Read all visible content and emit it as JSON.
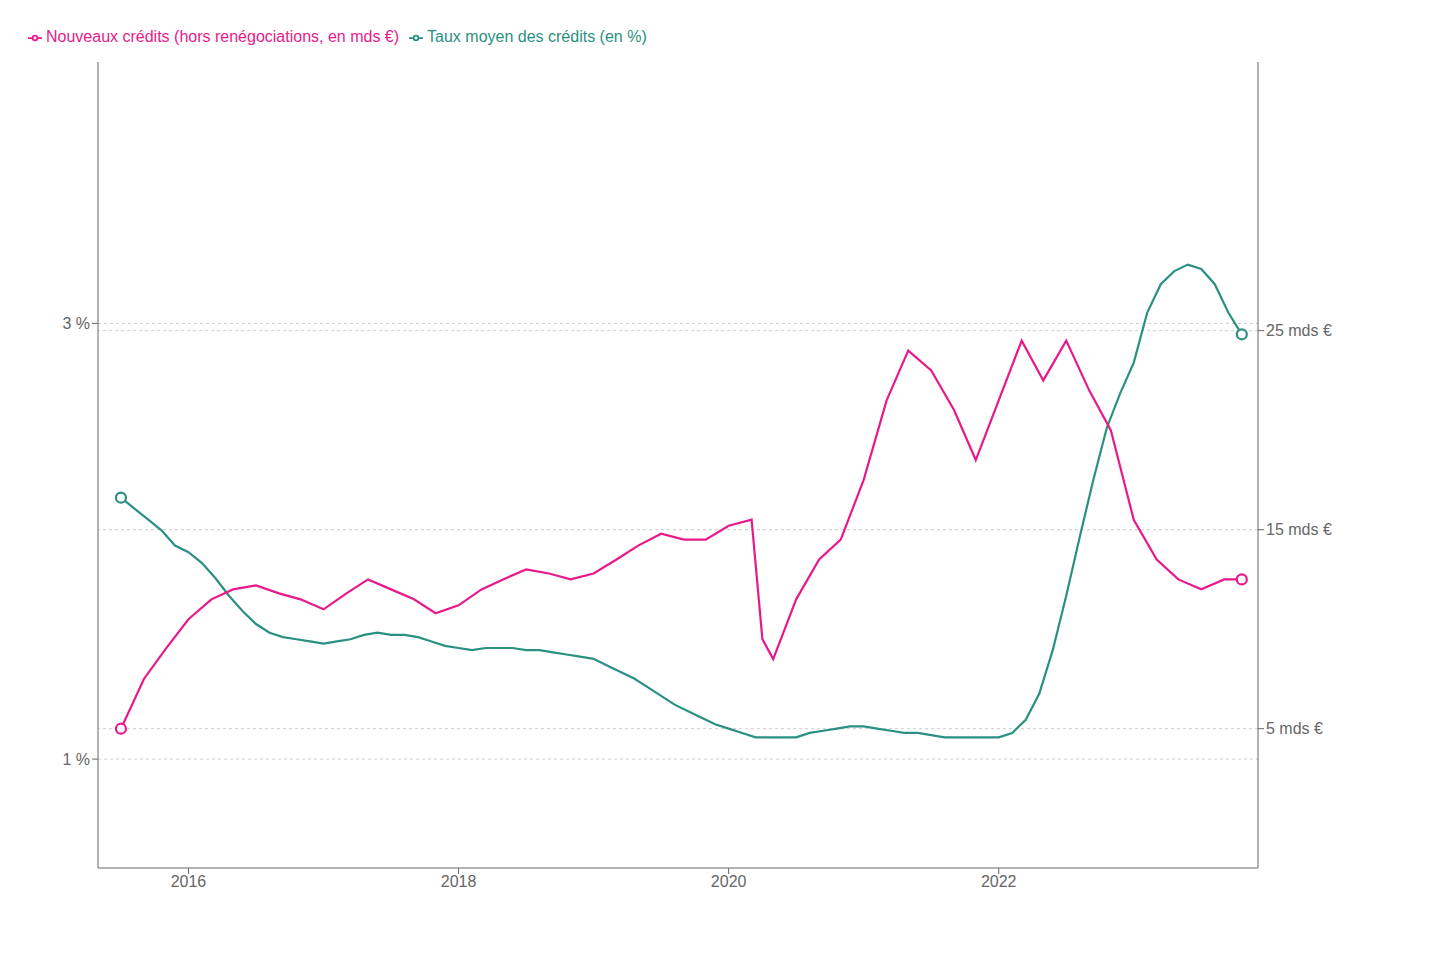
{
  "chart_data": {
    "type": "line",
    "legend": "upper left",
    "grid": true,
    "xlim": [
      2015.33,
      2023.92
    ],
    "xticks": [
      2016,
      2018,
      2020,
      2022
    ],
    "ylim": [
      0.5,
      4.2
    ],
    "yticks": [
      {
        "value": 1.0,
        "label": "1 %"
      },
      {
        "value": 3.0,
        "label": "3 %"
      }
    ],
    "y2lim": [
      -2.0,
      38.5
    ],
    "y2ticks": [
      {
        "value": 5.0,
        "label": "5 mds €"
      },
      {
        "value": 15.0,
        "label": "15 mds €"
      },
      {
        "value": 25.0,
        "label": "25 mds €"
      }
    ],
    "series": [
      {
        "name": "Taux moyen des crédits (en %)",
        "color": "#2a9080",
        "axis": "y",
        "x": [
          2015.5,
          2015.6,
          2015.7,
          2015.8,
          2015.9,
          2016.0,
          2016.1,
          2016.2,
          2016.3,
          2016.4,
          2016.5,
          2016.6,
          2016.7,
          2016.8,
          2016.9,
          2017.0,
          2017.1,
          2017.2,
          2017.3,
          2017.4,
          2017.5,
          2017.6,
          2017.7,
          2017.8,
          2017.9,
          2018.0,
          2018.1,
          2018.2,
          2018.3,
          2018.4,
          2018.5,
          2018.6,
          2018.7,
          2018.8,
          2018.9,
          2019.0,
          2019.1,
          2019.2,
          2019.3,
          2019.4,
          2019.5,
          2019.6,
          2019.7,
          2019.8,
          2019.9,
          2020.0,
          2020.1,
          2020.2,
          2020.3,
          2020.4,
          2020.5,
          2020.6,
          2020.7,
          2020.8,
          2020.9,
          2021.0,
          2021.1,
          2021.2,
          2021.3,
          2021.4,
          2021.5,
          2021.6,
          2021.7,
          2021.8,
          2021.9,
          2022.0,
          2022.1,
          2022.2,
          2022.3,
          2022.4,
          2022.5,
          2022.6,
          2022.7,
          2022.8,
          2022.9,
          2023.0,
          2023.1,
          2023.2,
          2023.3,
          2023.4,
          2023.5,
          2023.6,
          2023.7,
          2023.8
        ],
        "values": [
          2.2,
          2.15,
          2.1,
          2.05,
          1.98,
          1.95,
          1.9,
          1.83,
          1.75,
          1.68,
          1.62,
          1.58,
          1.56,
          1.55,
          1.54,
          1.53,
          1.54,
          1.55,
          1.57,
          1.58,
          1.57,
          1.57,
          1.56,
          1.54,
          1.52,
          1.51,
          1.5,
          1.51,
          1.51,
          1.51,
          1.5,
          1.5,
          1.49,
          1.48,
          1.47,
          1.46,
          1.43,
          1.4,
          1.37,
          1.33,
          1.29,
          1.25,
          1.22,
          1.19,
          1.16,
          1.14,
          1.12,
          1.1,
          1.1,
          1.1,
          1.1,
          1.12,
          1.13,
          1.14,
          1.15,
          1.15,
          1.14,
          1.13,
          1.12,
          1.12,
          1.11,
          1.1,
          1.1,
          1.1,
          1.1,
          1.1,
          1.12,
          1.18,
          1.3,
          1.5,
          1.75,
          2.02,
          2.28,
          2.52,
          2.68,
          2.82,
          3.05,
          3.18,
          3.24,
          3.27,
          3.25,
          3.18,
          3.05,
          2.95
        ]
      },
      {
        "name": "Nouveaux crédits (hors renégociations, en mds €)",
        "color": "#e8198b",
        "axis": "y2",
        "x": [
          2015.5,
          2015.67,
          2015.83,
          2016.0,
          2016.17,
          2016.33,
          2016.5,
          2016.67,
          2016.83,
          2017.0,
          2017.17,
          2017.33,
          2017.5,
          2017.67,
          2017.83,
          2018.0,
          2018.17,
          2018.33,
          2018.5,
          2018.67,
          2018.83,
          2019.0,
          2019.17,
          2019.33,
          2019.5,
          2019.67,
          2019.83,
          2020.0,
          2020.17,
          2020.25,
          2020.33,
          2020.5,
          2020.67,
          2020.83,
          2021.0,
          2021.17,
          2021.33,
          2021.5,
          2021.67,
          2021.83,
          2022.0,
          2022.17,
          2022.33,
          2022.5,
          2022.67,
          2022.83,
          2023.0,
          2023.17,
          2023.33,
          2023.5,
          2023.67,
          2023.8
        ],
        "values": [
          5.0,
          7.5,
          9.0,
          10.5,
          11.5,
          12.0,
          12.2,
          11.8,
          11.5,
          11.0,
          11.8,
          12.5,
          12.0,
          11.5,
          10.8,
          11.2,
          12.0,
          12.5,
          13.0,
          12.8,
          12.5,
          12.8,
          13.5,
          14.2,
          14.8,
          14.5,
          14.5,
          15.2,
          15.5,
          9.5,
          8.5,
          11.5,
          13.5,
          14.5,
          17.5,
          21.5,
          24.0,
          23.0,
          21.0,
          18.5,
          21.5,
          24.5,
          22.5,
          24.5,
          22.0,
          20.0,
          15.5,
          13.5,
          12.5,
          12.0,
          12.5,
          12.5
        ]
      }
    ]
  }
}
